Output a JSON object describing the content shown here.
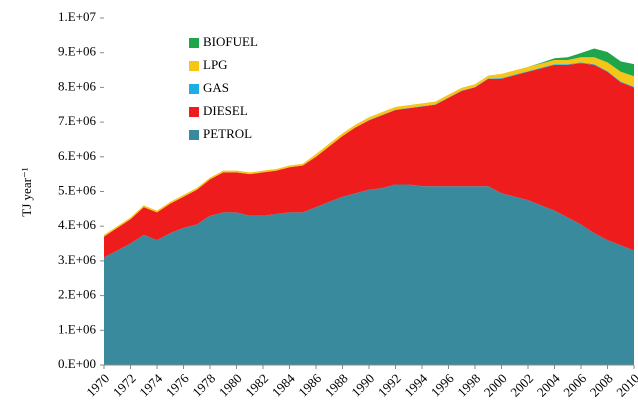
{
  "chart_data": {
    "type": "stacked_area",
    "y_label": "TJ year⁻¹",
    "x": [
      1970,
      1971,
      1972,
      1973,
      1974,
      1975,
      1976,
      1977,
      1978,
      1979,
      1980,
      1981,
      1982,
      1983,
      1984,
      1985,
      1986,
      1987,
      1988,
      1989,
      1990,
      1991,
      1992,
      1993,
      1994,
      1995,
      1996,
      1997,
      1998,
      1999,
      2000,
      2001,
      2002,
      2003,
      2004,
      2005,
      2006,
      2007,
      2008,
      2009,
      2010
    ],
    "xlim": [
      1970,
      2010
    ],
    "xticks": [
      1970,
      1972,
      1974,
      1976,
      1978,
      1980,
      1982,
      1984,
      1986,
      1988,
      1990,
      1992,
      1994,
      1996,
      1998,
      2000,
      2002,
      2004,
      2006,
      2008,
      2010
    ],
    "ylim": [
      0,
      10000000
    ],
    "yticks": [
      {
        "value": 0,
        "label": "0.E+00"
      },
      {
        "value": 1000000,
        "label": "1.E+06"
      },
      {
        "value": 2000000,
        "label": "2.E+06"
      },
      {
        "value": 3000000,
        "label": "3.E+06"
      },
      {
        "value": 4000000,
        "label": "4.E+06"
      },
      {
        "value": 5000000,
        "label": "5.E+06"
      },
      {
        "value": 6000000,
        "label": "6.E+06"
      },
      {
        "value": 7000000,
        "label": "7.E+06"
      },
      {
        "value": 8000000,
        "label": "8.E+06"
      },
      {
        "value": 9000000,
        "label": "9.E+06"
      },
      {
        "value": 10000000,
        "label": "1.E+07"
      }
    ],
    "grid": false,
    "legend": "top-left",
    "series": [
      {
        "name": "PETROL",
        "color": "#3a8a9e",
        "values": [
          3100000,
          3300000,
          3500000,
          3750000,
          3600000,
          3800000,
          3950000,
          4050000,
          4300000,
          4400000,
          4400000,
          4300000,
          4300000,
          4350000,
          4400000,
          4400000,
          4550000,
          4700000,
          4850000,
          4950000,
          5050000,
          5100000,
          5200000,
          5200000,
          5150000,
          5150000,
          5150000,
          5150000,
          5150000,
          5150000,
          4950000,
          4850000,
          4750000,
          4600000,
          4450000,
          4250000,
          4050000,
          3800000,
          3600000,
          3450000,
          3300000
        ]
      },
      {
        "name": "DIESEL",
        "color": "#ee1c1c",
        "values": [
          600000,
          650000,
          700000,
          800000,
          800000,
          850000,
          900000,
          1000000,
          1050000,
          1150000,
          1150000,
          1200000,
          1250000,
          1250000,
          1300000,
          1350000,
          1450000,
          1600000,
          1750000,
          1900000,
          2000000,
          2100000,
          2150000,
          2200000,
          2300000,
          2350000,
          2550000,
          2750000,
          2850000,
          3100000,
          3300000,
          3500000,
          3700000,
          3950000,
          4200000,
          4400000,
          4650000,
          4850000,
          4850000,
          4700000,
          4700000
        ]
      },
      {
        "name": "GAS",
        "color": "#1aaee5",
        "values": [
          0,
          0,
          0,
          0,
          0,
          0,
          0,
          0,
          0,
          0,
          0,
          0,
          0,
          0,
          0,
          0,
          0,
          0,
          0,
          0,
          10000,
          10000,
          10000,
          10000,
          10000,
          10000,
          10000,
          10000,
          10000,
          10000,
          20000,
          20000,
          20000,
          20000,
          20000,
          20000,
          20000,
          20000,
          20000,
          20000,
          20000
        ]
      },
      {
        "name": "LPG",
        "color": "#f5c518",
        "values": [
          50000,
          50000,
          50000,
          50000,
          50000,
          50000,
          50000,
          50000,
          50000,
          50000,
          50000,
          50000,
          50000,
          50000,
          50000,
          50000,
          80000,
          80000,
          80000,
          80000,
          80000,
          80000,
          80000,
          80000,
          80000,
          80000,
          80000,
          80000,
          80000,
          80000,
          120000,
          120000,
          120000,
          120000,
          120000,
          120000,
          150000,
          200000,
          250000,
          280000,
          300000
        ]
      },
      {
        "name": "BIOFUEL",
        "color": "#1fa64a",
        "values": [
          0,
          0,
          0,
          0,
          0,
          0,
          0,
          0,
          0,
          0,
          0,
          0,
          0,
          0,
          0,
          0,
          0,
          0,
          0,
          0,
          0,
          0,
          0,
          0,
          0,
          0,
          0,
          0,
          0,
          0,
          0,
          0,
          0,
          20000,
          50000,
          80000,
          120000,
          250000,
          300000,
          300000,
          350000
        ]
      }
    ]
  }
}
